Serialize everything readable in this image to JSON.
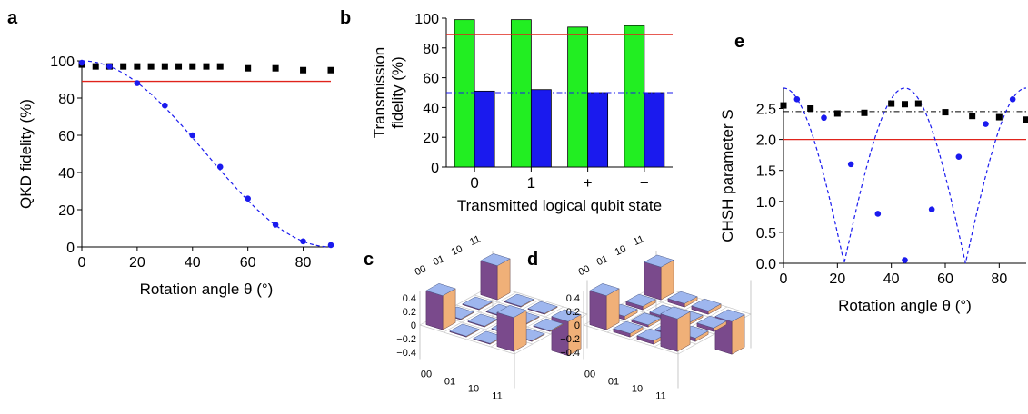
{
  "chart_data": [
    {
      "panel": "a",
      "type": "scatter",
      "xlabel": "Rotation angle θ (°)",
      "ylabel": "QKD fidelity (%)",
      "xlim": [
        0,
        90
      ],
      "ylim": [
        0,
        100
      ],
      "xticks": [
        "0",
        "20",
        "40",
        "60",
        "80"
      ],
      "yticks": [
        "0",
        "20",
        "40",
        "60",
        "80",
        "100"
      ],
      "grid": false,
      "threshold_line": {
        "y": 89,
        "color": "#e0231b"
      },
      "series": [
        {
          "marker": "square",
          "color": "#000000",
          "x": [
            0,
            5,
            10,
            15,
            20,
            25,
            30,
            35,
            40,
            45,
            50,
            60,
            70,
            80,
            90
          ],
          "y": [
            98,
            97,
            97,
            97,
            97,
            97,
            97,
            97,
            97,
            97,
            97,
            96,
            96,
            95,
            95
          ]
        },
        {
          "marker": "circle",
          "color": "#1a1aee",
          "x": [
            0,
            10,
            20,
            30,
            40,
            50,
            60,
            70,
            80,
            90
          ],
          "y": [
            99,
            97,
            88,
            76,
            60,
            43,
            26,
            12,
            3,
            1
          ]
        },
        {
          "line": "dashed",
          "color": "#1a1aee",
          "function": "100*cos^2(theta)"
        }
      ]
    },
    {
      "panel": "b",
      "type": "bar",
      "xlabel": "Transmitted logical qubit state",
      "ylabel": [
        "Transmission",
        "fidelity (%)"
      ],
      "categories": [
        "0",
        "1",
        "+",
        "−"
      ],
      "ylim": [
        0,
        100
      ],
      "yticks": [
        "0",
        "20",
        "40",
        "60",
        "80",
        "100"
      ],
      "grid": false,
      "threshold_line": {
        "y": 89,
        "color": "#e0231b"
      },
      "reference_line": {
        "y": 50,
        "color": "#1a1aee",
        "style": "dash-dot"
      },
      "series": [
        {
          "color": "#22ee22",
          "values": [
            99,
            99,
            94,
            95
          ]
        },
        {
          "color": "#1a1aee",
          "values": [
            51,
            52,
            50,
            50
          ]
        }
      ]
    },
    {
      "panel": "c",
      "type": "bar3d",
      "row_labels": [
        "00",
        "01",
        "10",
        "11"
      ],
      "col_labels": [
        "00",
        "01",
        "10",
        "11"
      ],
      "zticks": [
        "0.4",
        "0.2",
        "0",
        "−0.2",
        "−0.4"
      ],
      "values": [
        [
          0.5,
          0.0,
          0.0,
          0.5
        ],
        [
          0.0,
          0.0,
          0.0,
          0.0
        ],
        [
          0.0,
          0.0,
          0.0,
          0.0
        ],
        [
          0.5,
          0.0,
          0.0,
          -0.5
        ]
      ]
    },
    {
      "panel": "d",
      "type": "bar3d",
      "row_labels": [
        "00",
        "01",
        "10",
        "11"
      ],
      "col_labels": [
        "00",
        "01",
        "10",
        "11"
      ],
      "zticks": [
        "0.4",
        "0.2",
        "0",
        "−0.2",
        "−0.4"
      ],
      "values": [
        [
          0.5,
          0.05,
          0.05,
          0.48
        ],
        [
          0.05,
          0.03,
          -0.03,
          0.05
        ],
        [
          0.05,
          -0.03,
          0.03,
          0.05
        ],
        [
          0.48,
          0.05,
          0.05,
          -0.48
        ]
      ]
    },
    {
      "panel": "e",
      "type": "scatter",
      "xlabel": "Rotation angle θ (°)",
      "ylabel": "CHSH parameter S",
      "xlim": [
        0,
        90
      ],
      "ylim": [
        0,
        2.83
      ],
      "xticks": [
        "0",
        "20",
        "40",
        "60",
        "80"
      ],
      "yticks": [
        "0.0",
        "0.5",
        "1.0",
        "1.5",
        "2.0",
        "2.5"
      ],
      "grid": false,
      "threshold_line": {
        "y": 2.0,
        "color": "#e0231b"
      },
      "reference_line": {
        "y": 2.45,
        "color": "#000000",
        "style": "dash-dot"
      },
      "series": [
        {
          "marker": "square",
          "color": "#000000",
          "x": [
            0,
            10,
            20,
            30,
            40,
            45,
            50,
            60,
            70,
            80,
            90
          ],
          "y": [
            2.55,
            2.5,
            2.42,
            2.43,
            2.58,
            2.57,
            2.58,
            2.44,
            2.38,
            2.36,
            2.32
          ]
        },
        {
          "marker": "circle",
          "color": "#1a1aee",
          "x": [
            5,
            15,
            25,
            35,
            45,
            55,
            65,
            75,
            85
          ],
          "y": [
            2.65,
            2.35,
            1.6,
            0.8,
            0.05,
            0.87,
            1.72,
            2.25,
            2.65
          ]
        },
        {
          "line": "dashed",
          "color": "#1a1aee",
          "function": "2.83*|cos(4*theta)|"
        }
      ]
    }
  ],
  "labels": {
    "a": "a",
    "b": "b",
    "c": "c",
    "d": "d",
    "e": "e"
  }
}
